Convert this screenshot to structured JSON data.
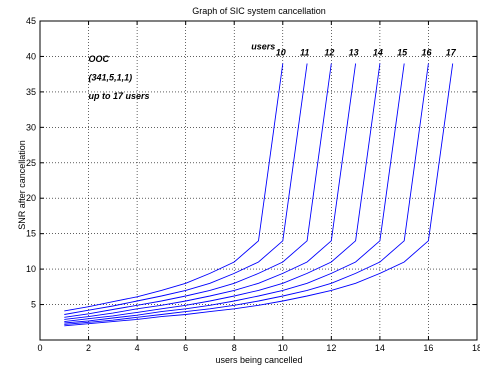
{
  "chart_data": {
    "type": "line",
    "title": "Graph of SIC system cancellation",
    "xlabel": "users being cancelled",
    "ylabel": "SNR after cancellation",
    "xlim": [
      0,
      18
    ],
    "ylim": [
      0,
      45
    ],
    "xticks": [
      0,
      2,
      4,
      6,
      8,
      10,
      12,
      14,
      16,
      18
    ],
    "yticks": [
      5,
      10,
      15,
      20,
      25,
      30,
      35,
      40,
      45
    ],
    "grid": true,
    "line_color": "#0000ff",
    "annotations": [
      {
        "text": "OOC",
        "x": 2.0,
        "y": 39.2
      },
      {
        "text": "(341,5,1,1)",
        "x": 2.0,
        "y": 36.6
      },
      {
        "text": "up to 17 users",
        "x": 2.0,
        "y": 34.0
      },
      {
        "text": "users",
        "x": 8.7,
        "y": 41.0
      }
    ],
    "series": [
      {
        "name": "10",
        "x": [
          1,
          2,
          3,
          4,
          5,
          6,
          7,
          8,
          9,
          10
        ],
        "y": [
          4.1,
          4.7,
          5.4,
          6.1,
          7.0,
          8.0,
          9.4,
          11.0,
          14.0,
          39.0
        ]
      },
      {
        "name": "11",
        "x": [
          1,
          2,
          3,
          4,
          5,
          6,
          7,
          8,
          9,
          10,
          11
        ],
        "y": [
          3.6,
          4.2,
          4.8,
          5.5,
          6.2,
          7.0,
          8.0,
          9.4,
          11.0,
          14.0,
          39.0
        ]
      },
      {
        "name": "12",
        "x": [
          1,
          2,
          3,
          4,
          5,
          6,
          7,
          8,
          9,
          10,
          11,
          12
        ],
        "y": [
          3.2,
          3.7,
          4.3,
          4.9,
          5.5,
          6.2,
          7.0,
          8.0,
          9.4,
          11.0,
          14.0,
          39.0
        ]
      },
      {
        "name": "13",
        "x": [
          1,
          2,
          3,
          4,
          5,
          6,
          7,
          8,
          9,
          10,
          11,
          12,
          13
        ],
        "y": [
          2.9,
          3.3,
          3.8,
          4.4,
          4.9,
          5.5,
          6.2,
          7.0,
          8.0,
          9.4,
          11.0,
          14.0,
          39.0
        ]
      },
      {
        "name": "14",
        "x": [
          1,
          2,
          3,
          4,
          5,
          6,
          7,
          8,
          9,
          10,
          11,
          12,
          13,
          14
        ],
        "y": [
          2.6,
          3.0,
          3.4,
          3.9,
          4.4,
          4.9,
          5.5,
          6.2,
          7.0,
          8.0,
          9.4,
          11.0,
          14.0,
          39.0
        ]
      },
      {
        "name": "15",
        "x": [
          1,
          2,
          3,
          4,
          5,
          6,
          7,
          8,
          9,
          10,
          11,
          12,
          13,
          14,
          15
        ],
        "y": [
          2.4,
          2.7,
          3.1,
          3.5,
          4.0,
          4.4,
          4.9,
          5.5,
          6.2,
          7.0,
          8.0,
          9.4,
          11.0,
          14.0,
          39.0
        ]
      },
      {
        "name": "16",
        "x": [
          1,
          2,
          3,
          4,
          5,
          6,
          7,
          8,
          9,
          10,
          11,
          12,
          13,
          14,
          15,
          16
        ],
        "y": [
          2.2,
          2.5,
          2.8,
          3.2,
          3.6,
          4.0,
          4.4,
          4.9,
          5.5,
          6.2,
          7.0,
          8.0,
          9.4,
          11.0,
          14.0,
          39.0
        ]
      },
      {
        "name": "17",
        "x": [
          1,
          2,
          3,
          4,
          5,
          6,
          7,
          8,
          9,
          10,
          11,
          12,
          13,
          14,
          15,
          16,
          17
        ],
        "y": [
          2.0,
          2.3,
          2.6,
          2.9,
          3.3,
          3.6,
          4.0,
          4.4,
          4.9,
          5.5,
          6.2,
          7.0,
          8.0,
          9.4,
          11.0,
          14.0,
          39.0
        ]
      }
    ]
  }
}
